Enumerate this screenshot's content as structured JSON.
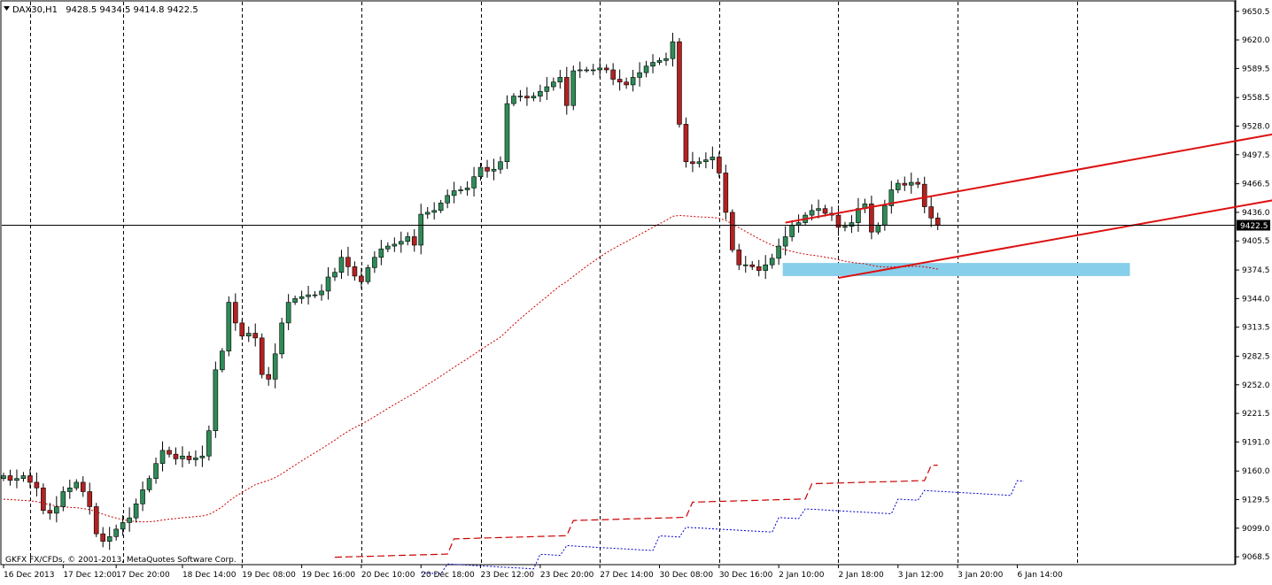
{
  "header": {
    "symbol": "DAX30,H1",
    "ohlc": "9428.5 9434.5 9414.8 9422.5"
  },
  "footer": {
    "copyright": "GKFX FX/CFDs, © 2001-2013, MetaQuotes Software Corp."
  },
  "current_price_label": "9422.5",
  "colors": {
    "bull": "#2e8b57",
    "bear": "#b22222",
    "grid": "#000000",
    "channel": "#dd1111",
    "support_zone": "#87ceeb",
    "indicator_red": "#cc0000",
    "indicator_blue": "#0000cc"
  },
  "chart_data": {
    "type": "candlestick",
    "symbol": "DAX30",
    "timeframe": "H1",
    "y_ticks": [
      "9650.5",
      "9620.0",
      "9589.5",
      "9558.5",
      "9528.0",
      "9497.5",
      "9466.5",
      "9436.0",
      "9405.5",
      "9374.5",
      "9344.0",
      "9313.5",
      "9282.5",
      "9252.0",
      "9221.5",
      "9191.0",
      "9160.0",
      "9129.5",
      "9099.0",
      "9068.5"
    ],
    "ylim": [
      9062,
      9655
    ],
    "x_ticks": [
      "16 Dec 2013",
      "17 Dec 12:00",
      "17 Dec 20:00",
      "18 Dec 14:00",
      "19 Dec 08:00",
      "19 Dec 16:00",
      "20 Dec 10:00",
      "20 Dec 18:00",
      "23 Dec 12:00",
      "23 Dec 20:00",
      "27 Dec 14:00",
      "30 Dec 08:00",
      "30 Dec 16:00",
      "2 Jan 10:00",
      "2 Jan 18:00",
      "3 Jan 12:00",
      "3 Jan 20:00",
      "6 Jan 14:00"
    ],
    "x_tick_bars": [
      0,
      9,
      17,
      27,
      36,
      45,
      54,
      63,
      72,
      81,
      90,
      99,
      108,
      117,
      126,
      135,
      144,
      153
    ],
    "separator_bars": [
      4,
      18,
      36,
      54,
      72,
      90,
      108,
      126,
      144,
      162
    ],
    "current_price": 9422.5,
    "closes": [
      9155,
      9150,
      9152,
      9155,
      9148,
      9142,
      9118,
      9115,
      9122,
      9138,
      9142,
      9148,
      9138,
      9122,
      9093,
      9085,
      9090,
      9098,
      9105,
      9110,
      9125,
      9140,
      9152,
      9168,
      9182,
      9178,
      9173,
      9176,
      9172,
      9174,
      9176,
      9203,
      9268,
      9288,
      9340,
      9318,
      9304,
      9307,
      9302,
      9263,
      9258,
      9285,
      9318,
      9340,
      9344,
      9346,
      9348,
      9348,
      9352,
      9367,
      9372,
      9388,
      9378,
      9368,
      9362,
      9377,
      9388,
      9397,
      9400,
      9402,
      9405,
      9410,
      9401,
      9434,
      9436,
      9438,
      9446,
      9454,
      9459,
      9460,
      9462,
      9474,
      9484,
      9480,
      9482,
      9490,
      9552,
      9560,
      9560,
      9558,
      9560,
      9565,
      9570,
      9575,
      9580,
      9550,
      9587,
      9588,
      9588,
      9588,
      9590,
      9588,
      9578,
      9575,
      9572,
      9580,
      9585,
      9592,
      9596,
      9598,
      9600,
      9618,
      9530,
      9490,
      9488,
      9490,
      9492,
      9495,
      9478,
      9436,
      9396,
      9380,
      9380,
      9378,
      9374,
      9380,
      9387,
      9400,
      9410,
      9422,
      9425,
      9433,
      9438,
      9440,
      9435,
      9433,
      9420,
      9421,
      9425,
      9440,
      9445,
      9415,
      9422,
      9443,
      9460,
      9467,
      9465,
      9468,
      9466,
      9442,
      9430,
      9422
    ],
    "channel_upper": {
      "from": [
        118,
        9425
      ],
      "to": [
        231,
        9563
      ]
    },
    "channel_lower": {
      "from": [
        126,
        9366
      ],
      "to": [
        231,
        9492
      ]
    },
    "support_zone": {
      "x": [
        118,
        170
      ],
      "y": [
        9368,
        9382
      ]
    }
  }
}
